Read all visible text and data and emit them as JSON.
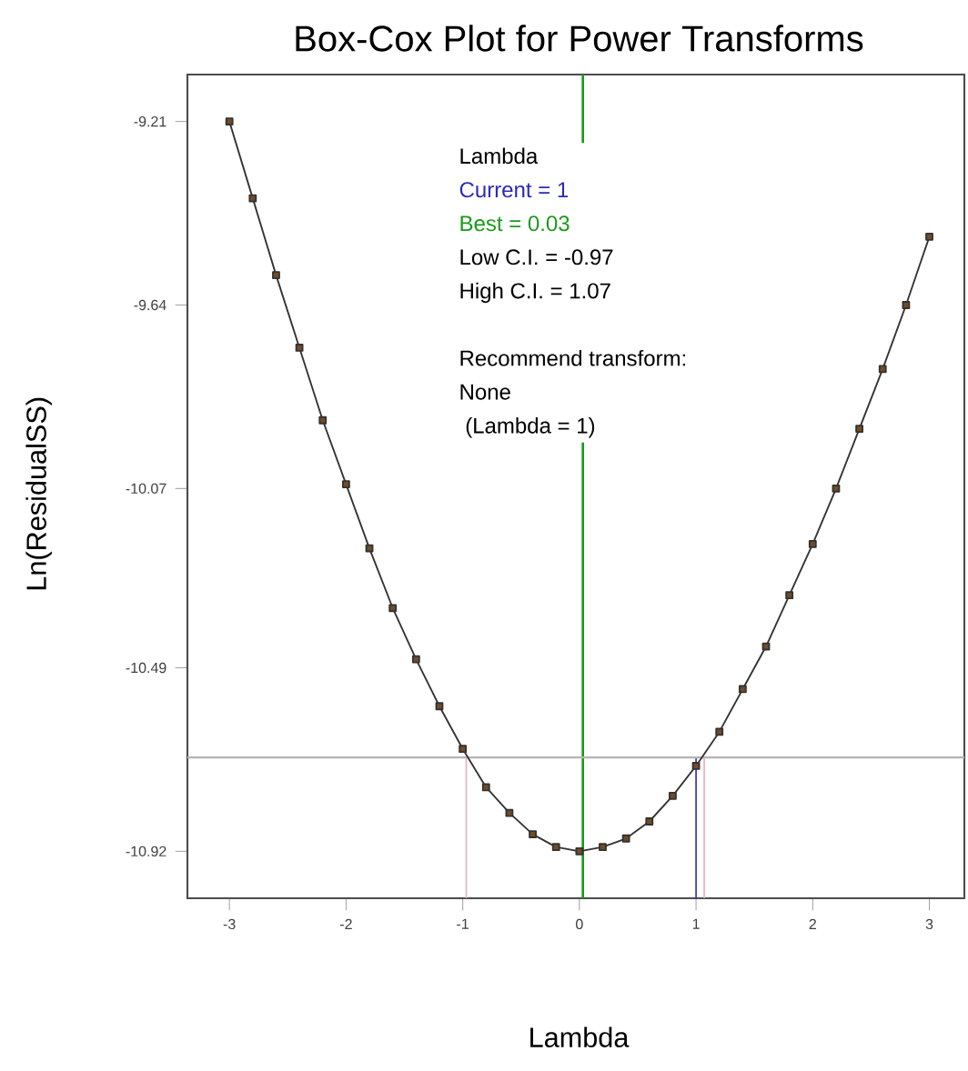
{
  "chart_data": {
    "type": "line",
    "title": "Box-Cox Plot for Power Transforms",
    "xlabel": "Lambda",
    "ylabel": "Ln(ResidualSS)",
    "x": [
      -3,
      -2.8,
      -2.6,
      -2.4,
      -2.2,
      -2.0,
      -1.8,
      -1.6,
      -1.4,
      -1.2,
      -1.0,
      -0.8,
      -0.6,
      -0.4,
      -0.2,
      0,
      0.2,
      0.4,
      0.6,
      0.8,
      1.0,
      1.2,
      1.4,
      1.6,
      1.8,
      2.0,
      2.2,
      2.4,
      2.6,
      2.8,
      3.0
    ],
    "series": [
      {
        "color": "#333333",
        "values": [
          -9.21,
          -9.39,
          -9.57,
          -9.74,
          -9.91,
          -10.06,
          -10.21,
          -10.35,
          -10.47,
          -10.58,
          -10.68,
          -10.77,
          -10.83,
          -10.88,
          -10.91,
          -10.92,
          -10.91,
          -10.89,
          -10.85,
          -10.79,
          -10.72,
          -10.64,
          -10.54,
          -10.44,
          -10.32,
          -10.2,
          -10.07,
          -9.93,
          -9.79,
          -9.64,
          -9.48
        ]
      }
    ],
    "marker": "square",
    "xlim": [
      -3.36,
      3.3
    ],
    "ylim": [
      -11.03,
      -9.1
    ],
    "xticks": [
      -3,
      -2,
      -1,
      0,
      1,
      2,
      3
    ],
    "yticks": [
      -9.21,
      -9.64,
      -10.07,
      -10.49,
      -10.92
    ],
    "ref_lines": [
      {
        "axis": "x",
        "value": 0.03,
        "label": "Best = 0.03",
        "color": "#1a9a1a"
      },
      {
        "axis": "x",
        "value": 1,
        "label": "Current = 1",
        "color": "#2a2ab8"
      },
      {
        "axis": "x",
        "value": -0.97,
        "color": "#f0a8b8"
      },
      {
        "axis": "x",
        "value": 1.07,
        "color": "#f0a8b8"
      },
      {
        "axis": "y",
        "value": -10.7,
        "color": "#b4b4b4"
      }
    ],
    "annotations": [
      "Lambda",
      "Low C.I. = -0.97",
      "High C.I. = 1.07",
      "Recommend transform:",
      "None",
      " (Lambda = 1)"
    ]
  }
}
